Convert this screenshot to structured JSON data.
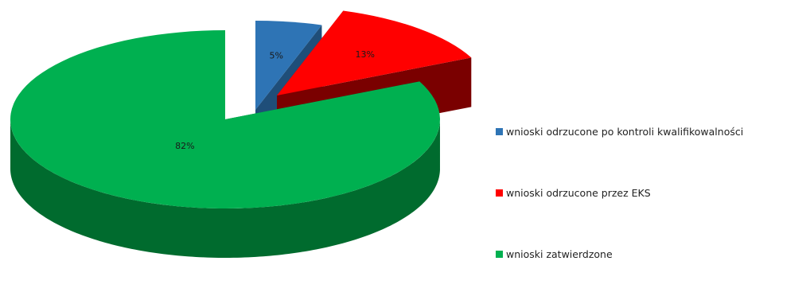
{
  "chart_data": {
    "type": "pie",
    "style": "3d-exploded",
    "categories": [
      "wnioski odrzucone po kontroli kwalifikowalności",
      "wnioski odrzucone przez EKS",
      "wnioski zatwierdzone"
    ],
    "values": [
      5,
      13,
      82
    ],
    "data_labels": [
      "5%",
      "13%",
      "82%"
    ],
    "colors": [
      "#2E74B5",
      "#FF0000",
      "#00B050"
    ],
    "side_colors": [
      "#1F4E79",
      "#7A0000",
      "#006B2E"
    ],
    "legend_position": "right"
  }
}
